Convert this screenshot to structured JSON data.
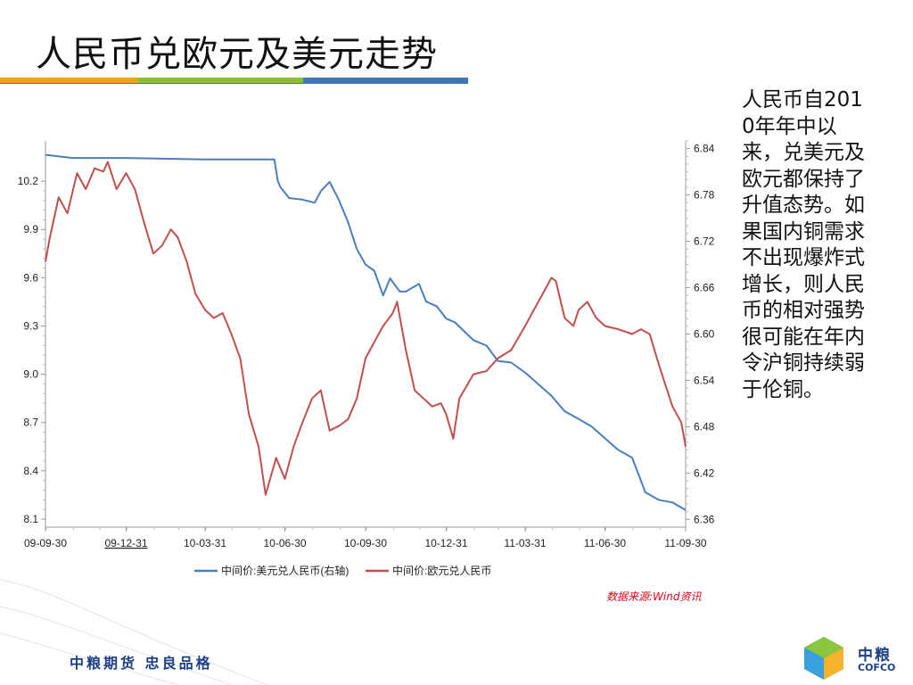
{
  "slide": {
    "title": "人民币兑欧元及美元走势",
    "side_text": "人民币自2010年年中以来，兑美元及欧元都保持了升值态势。如果国内铜需求不出现爆炸式增长，则人民币的相对强势很可能在年内令沪铜持续弱于伦铜。",
    "source_note": "数据来源:Wind资讯",
    "footer_slogan": "中粮期货  忠良品格",
    "brand_name": "中粮",
    "brand_sub": "COFCO"
  },
  "chart_data": {
    "type": "line",
    "title": "",
    "x_labels": [
      "09-09-30",
      "09-12-31",
      "10-03-31",
      "10-06-30",
      "10-09-30",
      "10-12-31",
      "11-03-31",
      "11-06-30",
      "11-09-30"
    ],
    "y_left": {
      "ticks": [
        "10.2",
        "9.9",
        "9.6",
        "9.3",
        "9.0",
        "8.7",
        "8.4",
        "8.1"
      ],
      "range": [
        8.05,
        10.45
      ]
    },
    "y_right": {
      "ticks": [
        "6.84",
        "6.78",
        "6.72",
        "6.66",
        "6.60",
        "6.54",
        "6.48",
        "6.42",
        "6.36"
      ],
      "range": [
        6.35,
        6.85
      ]
    },
    "legend_position": "bottom",
    "series": [
      {
        "name": "中间价:美元兑人民币(右轴)",
        "axis": "right",
        "color": "#4a7ebb",
        "points": [
          [
            "09-09-30",
            6.832
          ],
          [
            "09-10-31",
            6.828
          ],
          [
            "09-12-31",
            6.828
          ],
          [
            "10-03-31",
            6.826
          ],
          [
            "10-06-18",
            6.826
          ],
          [
            "10-06-22",
            6.798
          ],
          [
            "10-06-25",
            6.79
          ],
          [
            "10-07-05",
            6.776
          ],
          [
            "10-07-20",
            6.774
          ],
          [
            "10-08-03",
            6.77
          ],
          [
            "10-08-10",
            6.785
          ],
          [
            "10-08-20",
            6.797
          ],
          [
            "10-08-30",
            6.775
          ],
          [
            "10-09-10",
            6.745
          ],
          [
            "10-09-20",
            6.71
          ],
          [
            "10-09-30",
            6.69
          ],
          [
            "10-10-10",
            6.682
          ],
          [
            "10-10-20",
            6.65
          ],
          [
            "10-10-28",
            6.672
          ],
          [
            "10-11-08",
            6.655
          ],
          [
            "10-11-15",
            6.655
          ],
          [
            "10-11-30",
            6.665
          ],
          [
            "10-12-08",
            6.642
          ],
          [
            "10-12-20",
            6.636
          ],
          [
            "10-12-31",
            6.62
          ],
          [
            "11-01-10",
            6.615
          ],
          [
            "11-01-31",
            6.592
          ],
          [
            "11-02-15",
            6.585
          ],
          [
            "11-02-28",
            6.565
          ],
          [
            "11-03-15",
            6.563
          ],
          [
            "11-03-31",
            6.55
          ],
          [
            "11-04-30",
            6.52
          ],
          [
            "11-05-15",
            6.5
          ],
          [
            "11-05-31",
            6.49
          ],
          [
            "11-06-15",
            6.48
          ],
          [
            "11-06-30",
            6.465
          ],
          [
            "11-07-15",
            6.45
          ],
          [
            "11-07-31",
            6.44
          ],
          [
            "11-08-15",
            6.395
          ],
          [
            "11-08-31",
            6.385
          ],
          [
            "11-09-15",
            6.382
          ],
          [
            "11-09-30",
            6.372
          ]
        ]
      },
      {
        "name": "中间价:欧元兑人民币",
        "axis": "left",
        "color": "#c0504d",
        "points": [
          [
            "09-09-30",
            9.7
          ],
          [
            "09-10-05",
            9.85
          ],
          [
            "09-10-15",
            10.1
          ],
          [
            "09-10-25",
            10.0
          ],
          [
            "09-11-05",
            10.25
          ],
          [
            "09-11-15",
            10.15
          ],
          [
            "09-11-25",
            10.28
          ],
          [
            "09-12-05",
            10.26
          ],
          [
            "09-12-10",
            10.32
          ],
          [
            "09-12-20",
            10.15
          ],
          [
            "09-12-31",
            10.25
          ],
          [
            "10-01-10",
            10.15
          ],
          [
            "10-01-20",
            9.95
          ],
          [
            "10-01-31",
            9.75
          ],
          [
            "10-02-10",
            9.8
          ],
          [
            "10-02-20",
            9.9
          ],
          [
            "10-02-28",
            9.85
          ],
          [
            "10-03-10",
            9.7
          ],
          [
            "10-03-20",
            9.5
          ],
          [
            "10-03-31",
            9.4
          ],
          [
            "10-04-10",
            9.35
          ],
          [
            "10-04-20",
            9.38
          ],
          [
            "10-04-30",
            9.25
          ],
          [
            "10-05-10",
            9.1
          ],
          [
            "10-05-20",
            8.75
          ],
          [
            "10-05-31",
            8.55
          ],
          [
            "10-06-08",
            8.25
          ],
          [
            "10-06-20",
            8.48
          ],
          [
            "10-06-30",
            8.35
          ],
          [
            "10-07-10",
            8.55
          ],
          [
            "10-07-20",
            8.7
          ],
          [
            "10-07-31",
            8.85
          ],
          [
            "10-08-10",
            8.9
          ],
          [
            "10-08-20",
            8.65
          ],
          [
            "10-08-31",
            8.68
          ],
          [
            "10-09-10",
            8.72
          ],
          [
            "10-09-20",
            8.85
          ],
          [
            "10-09-30",
            9.1
          ],
          [
            "10-10-10",
            9.2
          ],
          [
            "10-10-20",
            9.3
          ],
          [
            "10-10-31",
            9.38
          ],
          [
            "10-11-05",
            9.45
          ],
          [
            "10-11-15",
            9.15
          ],
          [
            "10-11-25",
            8.9
          ],
          [
            "10-12-05",
            8.85
          ],
          [
            "10-12-15",
            8.8
          ],
          [
            "10-12-25",
            8.82
          ],
          [
            "10-12-31",
            8.75
          ],
          [
            "11-01-08",
            8.6
          ],
          [
            "11-01-15",
            8.85
          ],
          [
            "11-01-31",
            9.0
          ],
          [
            "11-02-15",
            9.02
          ],
          [
            "11-02-28",
            9.1
          ],
          [
            "11-03-15",
            9.15
          ],
          [
            "11-03-31",
            9.3
          ],
          [
            "11-04-10",
            9.4
          ],
          [
            "11-04-20",
            9.5
          ],
          [
            "11-04-30",
            9.6
          ],
          [
            "11-05-05",
            9.58
          ],
          [
            "11-05-15",
            9.35
          ],
          [
            "11-05-25",
            9.3
          ],
          [
            "11-05-31",
            9.4
          ],
          [
            "11-06-10",
            9.45
          ],
          [
            "11-06-20",
            9.35
          ],
          [
            "11-06-30",
            9.3
          ],
          [
            "11-07-15",
            9.28
          ],
          [
            "11-07-31",
            9.25
          ],
          [
            "11-08-10",
            9.28
          ],
          [
            "11-08-20",
            9.25
          ],
          [
            "11-08-31",
            9.05
          ],
          [
            "11-09-15",
            8.8
          ],
          [
            "11-09-25",
            8.7
          ],
          [
            "11-09-30",
            8.55
          ]
        ]
      }
    ]
  }
}
